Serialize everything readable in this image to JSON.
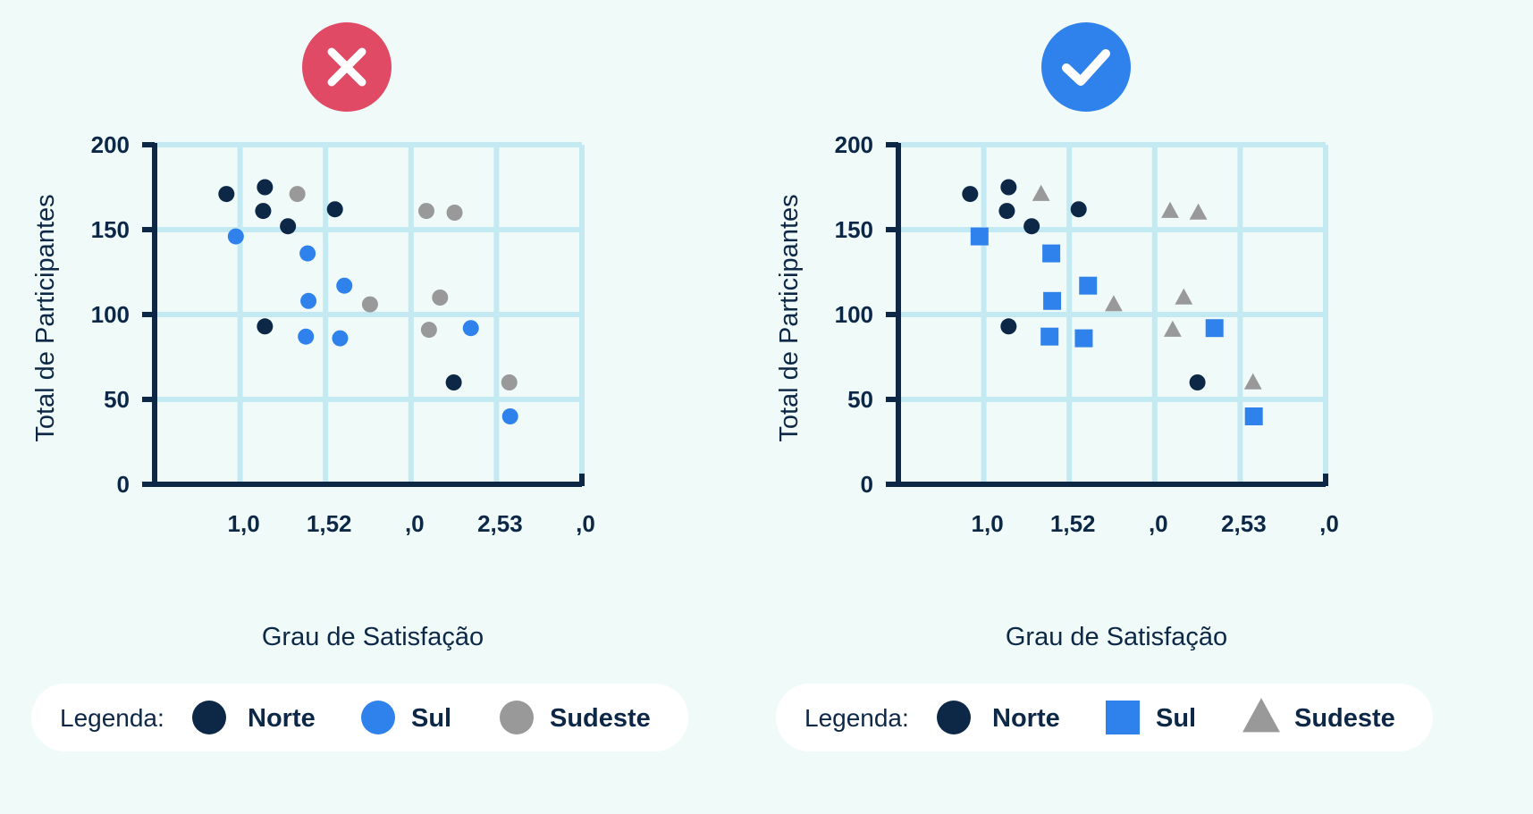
{
  "colors": {
    "background": "#f0fbf9",
    "grid": "#c3e9f3",
    "axis": "#0d2847",
    "norte": "#0d2847",
    "sul": "#2f82ec",
    "sudeste": "#999999",
    "wrong_badge": "#e04a65",
    "right_badge": "#2f82ec"
  },
  "chart_data": [
    {
      "type": "scatter",
      "badge": "x-icon",
      "xlabel": "Grau de Satisfação",
      "ylabel": "Total de Participantes",
      "xlim": [
        0,
        5
      ],
      "ylim": [
        0,
        200
      ],
      "x_tick_labels": [
        "1,0",
        "1,52",
        ",0",
        "2,53",
        ",0"
      ],
      "y_ticks": [
        0,
        50,
        100,
        150,
        200
      ],
      "y_tick_labels": [
        "0",
        "50",
        "100",
        "150",
        "200"
      ],
      "grid": true,
      "legend_title": "Legenda:",
      "legend_position": "bottom",
      "series": [
        {
          "name": "Norte",
          "color": "#0d2847",
          "marker": "circle",
          "points": [
            [
              0.84,
              171
            ],
            [
              1.29,
              175
            ],
            [
              1.27,
              161
            ],
            [
              1.56,
              152
            ],
            [
              2.11,
              162
            ],
            [
              1.29,
              93
            ],
            [
              3.5,
              60
            ]
          ]
        },
        {
          "name": "Sul",
          "color": "#2f82ec",
          "marker": "circle",
          "points": [
            [
              0.95,
              146
            ],
            [
              1.79,
              136
            ],
            [
              1.8,
              108
            ],
            [
              2.22,
              117
            ],
            [
              1.77,
              87
            ],
            [
              2.17,
              86
            ],
            [
              3.7,
              92
            ],
            [
              4.16,
              40
            ]
          ]
        },
        {
          "name": "Sudeste",
          "color": "#999999",
          "marker": "circle",
          "points": [
            [
              1.67,
              171
            ],
            [
              3.18,
              161
            ],
            [
              3.51,
              160
            ],
            [
              2.52,
              106
            ],
            [
              3.34,
              110
            ],
            [
              3.21,
              91
            ],
            [
              4.15,
              60
            ]
          ]
        }
      ]
    },
    {
      "type": "scatter",
      "badge": "check-icon",
      "xlabel": "Grau de Satisfação",
      "ylabel": "Total de Participantes",
      "xlim": [
        0,
        5
      ],
      "ylim": [
        0,
        200
      ],
      "x_tick_labels": [
        "1,0",
        "1,52",
        ",0",
        "2,53",
        ",0"
      ],
      "y_ticks": [
        0,
        50,
        100,
        150,
        200
      ],
      "y_tick_labels": [
        "0",
        "50",
        "100",
        "150",
        "200"
      ],
      "grid": true,
      "legend_title": "Legenda:",
      "legend_position": "bottom",
      "series": [
        {
          "name": "Norte",
          "color": "#0d2847",
          "marker": "circle",
          "points": [
            [
              0.84,
              171
            ],
            [
              1.29,
              175
            ],
            [
              1.27,
              161
            ],
            [
              1.56,
              152
            ],
            [
              2.11,
              162
            ],
            [
              1.29,
              93
            ],
            [
              3.5,
              60
            ]
          ]
        },
        {
          "name": "Sul",
          "color": "#2f82ec",
          "marker": "square",
          "points": [
            [
              0.95,
              146
            ],
            [
              1.79,
              136
            ],
            [
              1.8,
              108
            ],
            [
              2.22,
              117
            ],
            [
              1.77,
              87
            ],
            [
              2.17,
              86
            ],
            [
              3.7,
              92
            ],
            [
              4.16,
              40
            ]
          ]
        },
        {
          "name": "Sudeste",
          "color": "#999999",
          "marker": "triangle",
          "points": [
            [
              1.67,
              171
            ],
            [
              3.18,
              161
            ],
            [
              3.51,
              160
            ],
            [
              2.52,
              106
            ],
            [
              3.34,
              110
            ],
            [
              3.21,
              91
            ],
            [
              4.15,
              60
            ]
          ]
        }
      ]
    }
  ]
}
